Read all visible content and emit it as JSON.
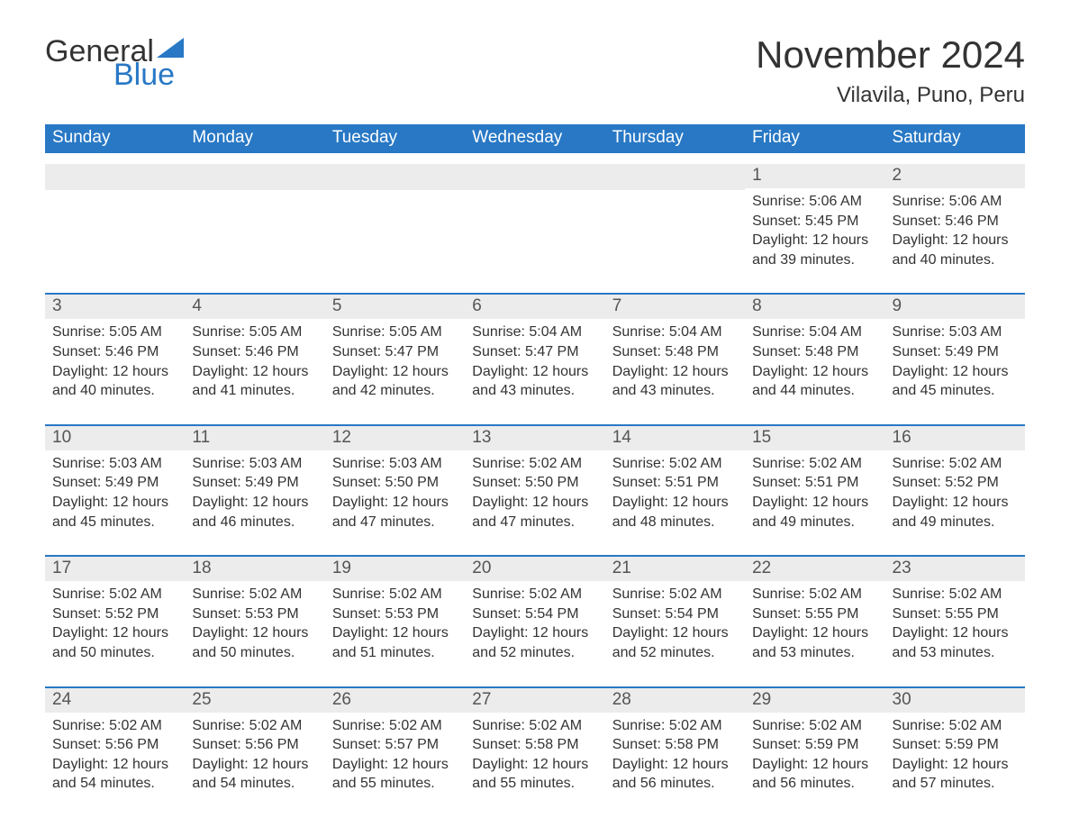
{
  "logo": {
    "word1": "General",
    "word2": "Blue",
    "sail_color": "#2878c5"
  },
  "month_title": "November 2024",
  "location": "Vilavila, Puno, Peru",
  "colors": {
    "header_bg": "#2878c5",
    "header_text": "#ffffff",
    "daynum_bg": "#ececec",
    "daynum_border": "#2878c5",
    "body_text": "#333333"
  },
  "font": {
    "family": "Segoe UI / Arial",
    "month_title_size": 42,
    "location_size": 24,
    "day_header_size": 19,
    "body_size": 16
  },
  "day_headers": [
    "Sunday",
    "Monday",
    "Tuesday",
    "Wednesday",
    "Thursday",
    "Friday",
    "Saturday"
  ],
  "labels": {
    "sunrise": "Sunrise: ",
    "sunset": "Sunset: ",
    "daylight": "Daylight: "
  },
  "weeks": [
    [
      {
        "day": "",
        "sunrise": "",
        "sunset": "",
        "daylight": ""
      },
      {
        "day": "",
        "sunrise": "",
        "sunset": "",
        "daylight": ""
      },
      {
        "day": "",
        "sunrise": "",
        "sunset": "",
        "daylight": ""
      },
      {
        "day": "",
        "sunrise": "",
        "sunset": "",
        "daylight": ""
      },
      {
        "day": "",
        "sunrise": "",
        "sunset": "",
        "daylight": ""
      },
      {
        "day": "1",
        "sunrise": "5:06 AM",
        "sunset": "5:45 PM",
        "daylight": "12 hours and 39 minutes."
      },
      {
        "day": "2",
        "sunrise": "5:06 AM",
        "sunset": "5:46 PM",
        "daylight": "12 hours and 40 minutes."
      }
    ],
    [
      {
        "day": "3",
        "sunrise": "5:05 AM",
        "sunset": "5:46 PM",
        "daylight": "12 hours and 40 minutes."
      },
      {
        "day": "4",
        "sunrise": "5:05 AM",
        "sunset": "5:46 PM",
        "daylight": "12 hours and 41 minutes."
      },
      {
        "day": "5",
        "sunrise": "5:05 AM",
        "sunset": "5:47 PM",
        "daylight": "12 hours and 42 minutes."
      },
      {
        "day": "6",
        "sunrise": "5:04 AM",
        "sunset": "5:47 PM",
        "daylight": "12 hours and 43 minutes."
      },
      {
        "day": "7",
        "sunrise": "5:04 AM",
        "sunset": "5:48 PM",
        "daylight": "12 hours and 43 minutes."
      },
      {
        "day": "8",
        "sunrise": "5:04 AM",
        "sunset": "5:48 PM",
        "daylight": "12 hours and 44 minutes."
      },
      {
        "day": "9",
        "sunrise": "5:03 AM",
        "sunset": "5:49 PM",
        "daylight": "12 hours and 45 minutes."
      }
    ],
    [
      {
        "day": "10",
        "sunrise": "5:03 AM",
        "sunset": "5:49 PM",
        "daylight": "12 hours and 45 minutes."
      },
      {
        "day": "11",
        "sunrise": "5:03 AM",
        "sunset": "5:49 PM",
        "daylight": "12 hours and 46 minutes."
      },
      {
        "day": "12",
        "sunrise": "5:03 AM",
        "sunset": "5:50 PM",
        "daylight": "12 hours and 47 minutes."
      },
      {
        "day": "13",
        "sunrise": "5:02 AM",
        "sunset": "5:50 PM",
        "daylight": "12 hours and 47 minutes."
      },
      {
        "day": "14",
        "sunrise": "5:02 AM",
        "sunset": "5:51 PM",
        "daylight": "12 hours and 48 minutes."
      },
      {
        "day": "15",
        "sunrise": "5:02 AM",
        "sunset": "5:51 PM",
        "daylight": "12 hours and 49 minutes."
      },
      {
        "day": "16",
        "sunrise": "5:02 AM",
        "sunset": "5:52 PM",
        "daylight": "12 hours and 49 minutes."
      }
    ],
    [
      {
        "day": "17",
        "sunrise": "5:02 AM",
        "sunset": "5:52 PM",
        "daylight": "12 hours and 50 minutes."
      },
      {
        "day": "18",
        "sunrise": "5:02 AM",
        "sunset": "5:53 PM",
        "daylight": "12 hours and 50 minutes."
      },
      {
        "day": "19",
        "sunrise": "5:02 AM",
        "sunset": "5:53 PM",
        "daylight": "12 hours and 51 minutes."
      },
      {
        "day": "20",
        "sunrise": "5:02 AM",
        "sunset": "5:54 PM",
        "daylight": "12 hours and 52 minutes."
      },
      {
        "day": "21",
        "sunrise": "5:02 AM",
        "sunset": "5:54 PM",
        "daylight": "12 hours and 52 minutes."
      },
      {
        "day": "22",
        "sunrise": "5:02 AM",
        "sunset": "5:55 PM",
        "daylight": "12 hours and 53 minutes."
      },
      {
        "day": "23",
        "sunrise": "5:02 AM",
        "sunset": "5:55 PM",
        "daylight": "12 hours and 53 minutes."
      }
    ],
    [
      {
        "day": "24",
        "sunrise": "5:02 AM",
        "sunset": "5:56 PM",
        "daylight": "12 hours and 54 minutes."
      },
      {
        "day": "25",
        "sunrise": "5:02 AM",
        "sunset": "5:56 PM",
        "daylight": "12 hours and 54 minutes."
      },
      {
        "day": "26",
        "sunrise": "5:02 AM",
        "sunset": "5:57 PM",
        "daylight": "12 hours and 55 minutes."
      },
      {
        "day": "27",
        "sunrise": "5:02 AM",
        "sunset": "5:58 PM",
        "daylight": "12 hours and 55 minutes."
      },
      {
        "day": "28",
        "sunrise": "5:02 AM",
        "sunset": "5:58 PM",
        "daylight": "12 hours and 56 minutes."
      },
      {
        "day": "29",
        "sunrise": "5:02 AM",
        "sunset": "5:59 PM",
        "daylight": "12 hours and 56 minutes."
      },
      {
        "day": "30",
        "sunrise": "5:02 AM",
        "sunset": "5:59 PM",
        "daylight": "12 hours and 57 minutes."
      }
    ]
  ]
}
